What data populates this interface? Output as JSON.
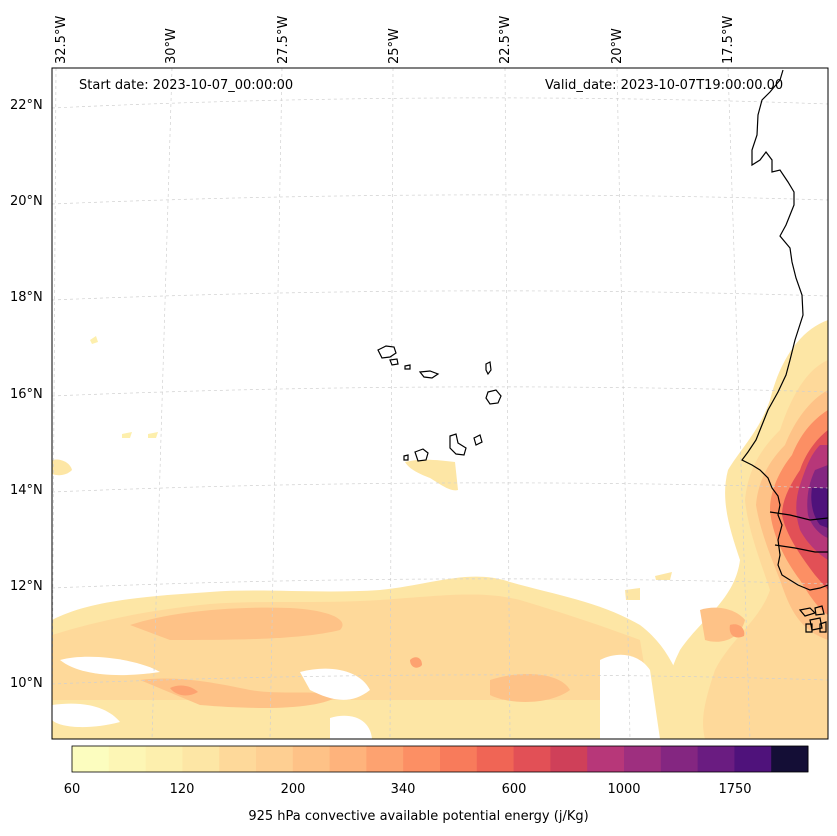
{
  "header": {
    "start_date": "Start date: 2023-10-07_00:00:00",
    "valid_date": "Valid_date: 2023-10-07T19:00:00.00"
  },
  "longitude_labels": [
    "32.5°W",
    "30°W",
    "27.5°W",
    "25°W",
    "22.5°W",
    "20°W",
    "17.5°W"
  ],
  "latitude_labels": [
    "22°N",
    "20°N",
    "18°N",
    "16°N",
    "14°N",
    "12°N",
    "10°N"
  ],
  "colorbar": {
    "label": "925 hPa convective available potential energy (j/Kg)",
    "tick_labels": [
      "60",
      "120",
      "200",
      "340",
      "600",
      "1000",
      "1750"
    ],
    "colors": [
      "#fcfdbf",
      "#fdf6b5",
      "#fdefad",
      "#fde6a5",
      "#fed99a",
      "#fecf92",
      "#fec287",
      "#feb37c",
      "#fda270",
      "#fc8f64",
      "#f87b5b",
      "#f06555",
      "#e25056",
      "#cf4059",
      "#b73779",
      "#9e2f7f",
      "#842681",
      "#6a1c81",
      "#4f127b",
      "#140e36"
    ],
    "units": "j/Kg"
  },
  "map": {
    "variable": "925 hPa convective available potential energy",
    "features": [
      "coastline-west-africa",
      "cape-verde-islands",
      "cape-evaluation-grid"
    ]
  }
}
